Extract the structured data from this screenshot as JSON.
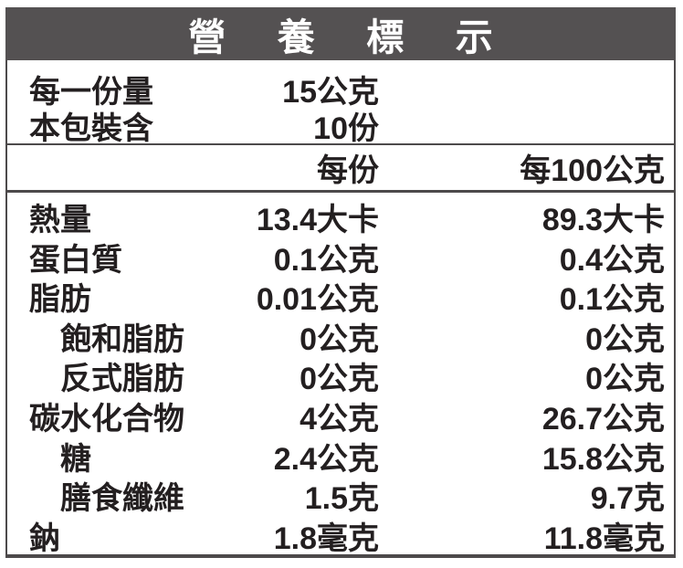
{
  "title": "營 養 標 示",
  "serving_info": [
    {
      "label": "每一份量",
      "value": "15公克"
    },
    {
      "label": "本包裝含",
      "value": "10份"
    }
  ],
  "columns": {
    "per_serving": "每份",
    "per_100g": "每100公克"
  },
  "nutrients": [
    {
      "label": "熱量",
      "per_serving": "13.4大卡",
      "per_100g": "89.3大卡"
    },
    {
      "label": "蛋白質",
      "per_serving": "0.1公克",
      "per_100g": "0.4公克"
    },
    {
      "label": "脂肪",
      "per_serving": "0.01公克",
      "per_100g": "0.1公克"
    },
    {
      "label": "飽和脂肪",
      "per_serving": "0公克",
      "per_100g": "0公克"
    },
    {
      "label": "反式脂肪",
      "per_serving": "0公克",
      "per_100g": "0公克"
    },
    {
      "label": "碳水化合物",
      "per_serving": "4公克",
      "per_100g": "26.7公克"
    },
    {
      "label": "糖",
      "per_serving": "2.4公克",
      "per_100g": "15.8公克"
    },
    {
      "label": "膳食纖維",
      "per_serving": "1.5克",
      "per_100g": "9.7克"
    },
    {
      "label": "鈉",
      "per_serving": "1.8毫克",
      "per_100g": "11.8毫克"
    }
  ],
  "colors": {
    "header_bg": "#545152",
    "text": "#231f20",
    "border": "#4d4a4b",
    "background": "#ffffff"
  }
}
